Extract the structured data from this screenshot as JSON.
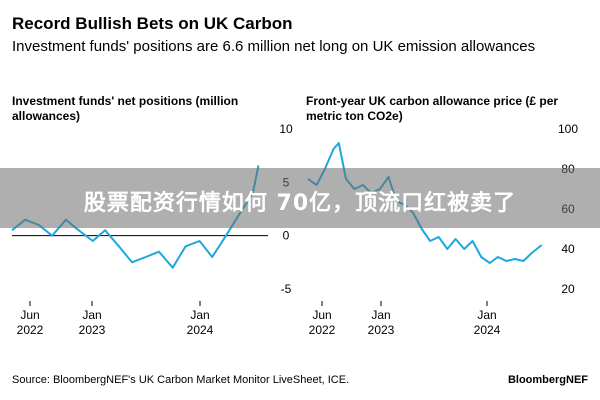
{
  "header": {
    "title": "Record Bullish Bets on UK Carbon",
    "subtitle": "Investment funds' positions are 6.6 million net long on UK emission allowances"
  },
  "footer": {
    "source": "Source: BloombergNEF's UK Carbon Market Monitor LiveSheet, ICE.",
    "brand": "BloombergNEF"
  },
  "overlay": {
    "text": "股票配资行情如何 70亿，顶流口红被卖了"
  },
  "colors": {
    "line": "#1ea7dd",
    "zero_line": "#000000",
    "overlay": "#6e6e6e"
  },
  "chart_data": [
    {
      "type": "line",
      "title": "Investment funds' net positions (million allowances)",
      "x_ticks": [
        "Jun 2022",
        "Jan 2023",
        "Jan 2024"
      ],
      "y_ticks": [
        10,
        5,
        0,
        -5
      ],
      "ylim": [
        -5,
        10
      ],
      "xlim": [
        "2022-05",
        "2024-09"
      ],
      "reference_line": 0,
      "series": [
        {
          "x": [
            "2022-05-01",
            "2022-06-15",
            "2022-08-01",
            "2022-09-15",
            "2022-11-01",
            "2022-12-15",
            "2023-02-01",
            "2023-03-15",
            "2023-05-01",
            "2023-06-15",
            "2023-08-01",
            "2023-09-15",
            "2023-11-01",
            "2023-12-15",
            "2024-02-01",
            "2024-03-15",
            "2024-05-01",
            "2024-06-15",
            "2024-08-01",
            "2024-08-20"
          ],
          "values": [
            0.5,
            1.5,
            1.0,
            0.0,
            1.5,
            0.5,
            -0.5,
            0.5,
            -1.0,
            -2.5,
            -2.0,
            -1.5,
            -3.0,
            -1.0,
            -0.5,
            -2.0,
            0.0,
            2.0,
            4.0,
            6.6
          ]
        }
      ]
    },
    {
      "type": "line",
      "title": "Front-year UK carbon allowance price (£ per metric ton CO2e)",
      "x_ticks": [
        "Jun 2022",
        "Jan 2023",
        "Jan 2024"
      ],
      "y_ticks": [
        100,
        80,
        60,
        40,
        20
      ],
      "ylim": [
        20,
        100
      ],
      "xlim": [
        "2022-05",
        "2024-09"
      ],
      "series": [
        {
          "x": [
            "2022-05-01",
            "2022-06-01",
            "2022-07-01",
            "2022-08-01",
            "2022-08-20",
            "2022-09-15",
            "2022-10-15",
            "2022-11-15",
            "2022-12-15",
            "2023-01-15",
            "2023-02-15",
            "2023-03-15",
            "2023-04-15",
            "2023-05-15",
            "2023-06-15",
            "2023-07-15",
            "2023-08-15",
            "2023-09-15",
            "2023-10-15",
            "2023-11-15",
            "2023-12-15",
            "2024-01-15",
            "2024-02-15",
            "2024-03-15",
            "2024-04-15",
            "2024-05-15",
            "2024-06-15",
            "2024-07-15",
            "2024-08-20"
          ],
          "values": [
            75,
            72,
            80,
            90,
            93,
            75,
            70,
            72,
            68,
            70,
            76,
            64,
            62,
            58,
            50,
            44,
            46,
            40,
            45,
            40,
            44,
            36,
            33,
            36,
            34,
            35,
            34,
            38,
            42
          ]
        }
      ]
    }
  ]
}
